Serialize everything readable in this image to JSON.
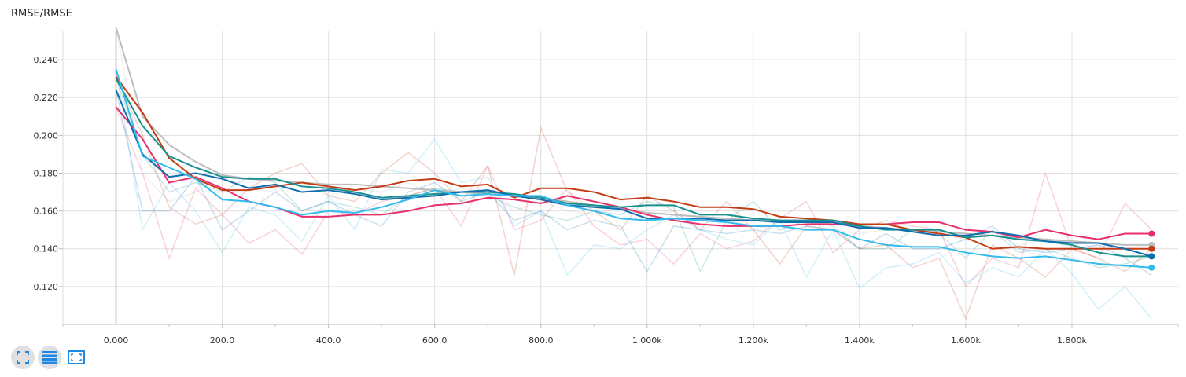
{
  "title": "RMSE/RMSE",
  "toolbar": {
    "fit_icon": "fit-domain-icon",
    "log_icon": "log-scale-icon",
    "expand_icon": "expand-icon"
  },
  "chart_data": {
    "type": "line",
    "title": "RMSE/RMSE",
    "xlabel": "",
    "ylabel": "",
    "xlim": [
      -100,
      2000
    ],
    "ylim": [
      0.1,
      0.255
    ],
    "x_ticks": [
      0,
      200,
      400,
      600,
      800,
      1000,
      1200,
      1400,
      1600,
      1800
    ],
    "x_tick_labels": [
      "0.000",
      "200.0",
      "400.0",
      "600.0",
      "800.0",
      "1.000k",
      "1.200k",
      "1.400k",
      "1.600k",
      "1.800k"
    ],
    "y_ticks": [
      0.12,
      0.14,
      0.16,
      0.18,
      0.2,
      0.22,
      0.24
    ],
    "y_tick_labels": [
      "0.120",
      "0.140",
      "0.160",
      "0.180",
      "0.200",
      "0.220",
      "0.240"
    ],
    "grid": true,
    "x": [
      0,
      50,
      100,
      150,
      200,
      250,
      300,
      350,
      400,
      450,
      500,
      550,
      600,
      650,
      700,
      750,
      800,
      850,
      900,
      950,
      1000,
      1050,
      1100,
      1150,
      1200,
      1250,
      1300,
      1350,
      1400,
      1450,
      1500,
      1550,
      1600,
      1650,
      1700,
      1750,
      1800,
      1850,
      1900,
      1950
    ],
    "series": [
      {
        "color": "#bdbdbd",
        "smoothed": [
          0.257,
          0.21,
          0.195,
          0.186,
          0.179,
          0.177,
          0.176,
          0.175,
          0.174,
          0.174,
          0.173,
          0.172,
          0.171,
          0.17,
          0.169,
          0.168,
          0.167,
          0.165,
          0.163,
          0.161,
          0.159,
          0.158,
          0.157,
          0.156,
          0.155,
          0.154,
          0.154,
          0.153,
          0.152,
          0.151,
          0.15,
          0.149,
          0.148,
          0.147,
          0.146,
          0.145,
          0.144,
          0.143,
          0.142,
          0.142
        ],
        "raw": [
          0.257,
          0.18,
          0.165,
          0.17,
          0.178,
          0.172,
          0.17,
          0.175,
          0.168,
          0.172,
          0.17,
          0.175,
          0.168,
          0.172,
          0.17,
          0.16,
          0.165,
          0.16,
          0.158,
          0.162,
          0.158,
          0.16,
          0.15,
          0.155,
          0.152,
          0.15,
          0.155,
          0.15,
          0.148,
          0.15,
          0.15,
          0.148,
          0.145,
          0.14,
          0.142,
          0.145,
          0.14,
          0.142,
          0.14,
          0.142
        ]
      },
      {
        "color": "#e8306b",
        "smoothed": [
          0.215,
          0.198,
          0.175,
          0.178,
          0.172,
          0.165,
          0.162,
          0.157,
          0.157,
          0.158,
          0.158,
          0.16,
          0.163,
          0.164,
          0.167,
          0.166,
          0.164,
          0.168,
          0.165,
          0.162,
          0.158,
          0.155,
          0.153,
          0.152,
          0.152,
          0.152,
          0.153,
          0.153,
          0.153,
          0.153,
          0.154,
          0.154,
          0.15,
          0.149,
          0.146,
          0.15,
          0.147,
          0.145,
          0.148,
          0.148
        ],
        "raw": [
          0.215,
          0.18,
          0.135,
          0.172,
          0.158,
          0.143,
          0.15,
          0.137,
          0.16,
          0.158,
          0.165,
          0.168,
          0.172,
          0.152,
          0.184,
          0.15,
          0.155,
          0.172,
          0.152,
          0.142,
          0.145,
          0.132,
          0.148,
          0.14,
          0.144,
          0.156,
          0.165,
          0.138,
          0.15,
          0.155,
          0.152,
          0.15,
          0.12,
          0.135,
          0.13,
          0.18,
          0.14,
          0.135,
          0.164,
          0.15
        ]
      },
      {
        "color": "#c43c15",
        "smoothed": [
          0.231,
          0.212,
          0.188,
          0.177,
          0.171,
          0.171,
          0.173,
          0.175,
          0.173,
          0.171,
          0.173,
          0.176,
          0.177,
          0.173,
          0.174,
          0.167,
          0.172,
          0.172,
          0.17,
          0.166,
          0.167,
          0.165,
          0.162,
          0.162,
          0.161,
          0.157,
          0.156,
          0.155,
          0.153,
          0.153,
          0.15,
          0.148,
          0.146,
          0.14,
          0.141,
          0.14,
          0.14,
          0.14,
          0.14,
          0.14
        ],
        "raw": [
          0.231,
          0.2,
          0.162,
          0.153,
          0.158,
          0.172,
          0.18,
          0.185,
          0.168,
          0.165,
          0.18,
          0.191,
          0.18,
          0.165,
          0.184,
          0.126,
          0.204,
          0.17,
          0.16,
          0.15,
          0.168,
          0.16,
          0.15,
          0.165,
          0.15,
          0.132,
          0.152,
          0.15,
          0.14,
          0.142,
          0.13,
          0.135,
          0.103,
          0.142,
          0.135,
          0.125,
          0.14,
          0.135,
          0.128,
          0.14
        ]
      },
      {
        "color": "#16918e",
        "smoothed": [
          0.23,
          0.205,
          0.189,
          0.183,
          0.178,
          0.177,
          0.177,
          0.173,
          0.172,
          0.17,
          0.167,
          0.168,
          0.169,
          0.17,
          0.17,
          0.169,
          0.167,
          0.164,
          0.163,
          0.162,
          0.163,
          0.163,
          0.158,
          0.158,
          0.156,
          0.155,
          0.155,
          0.155,
          0.152,
          0.15,
          0.15,
          0.15,
          0.146,
          0.147,
          0.145,
          0.144,
          0.142,
          0.138,
          0.136,
          0.136
        ],
        "raw": [
          0.23,
          0.19,
          0.17,
          0.175,
          0.17,
          0.178,
          0.175,
          0.16,
          0.165,
          0.162,
          0.158,
          0.168,
          0.172,
          0.17,
          0.168,
          0.162,
          0.158,
          0.155,
          0.16,
          0.158,
          0.165,
          0.162,
          0.128,
          0.155,
          0.165,
          0.15,
          0.155,
          0.152,
          0.14,
          0.14,
          0.15,
          0.148,
          0.135,
          0.15,
          0.138,
          0.14,
          0.135,
          0.13,
          0.132,
          0.136
        ]
      },
      {
        "color": "#0f6db0",
        "smoothed": [
          0.224,
          0.19,
          0.178,
          0.18,
          0.177,
          0.172,
          0.174,
          0.17,
          0.171,
          0.169,
          0.166,
          0.167,
          0.168,
          0.17,
          0.171,
          0.168,
          0.166,
          0.163,
          0.162,
          0.161,
          0.156,
          0.156,
          0.156,
          0.155,
          0.155,
          0.154,
          0.154,
          0.154,
          0.151,
          0.151,
          0.149,
          0.147,
          0.147,
          0.149,
          0.147,
          0.144,
          0.143,
          0.143,
          0.14,
          0.136
        ],
        "raw": [
          0.224,
          0.16,
          0.16,
          0.178,
          0.15,
          0.16,
          0.17,
          0.16,
          0.165,
          0.158,
          0.152,
          0.17,
          0.175,
          0.165,
          0.17,
          0.155,
          0.16,
          0.15,
          0.155,
          0.152,
          0.128,
          0.152,
          0.15,
          0.148,
          0.15,
          0.148,
          0.152,
          0.15,
          0.14,
          0.148,
          0.14,
          0.14,
          0.145,
          0.152,
          0.14,
          0.138,
          0.14,
          0.142,
          0.135,
          0.126
        ]
      },
      {
        "color": "#33bbee",
        "smoothed": [
          0.235,
          0.189,
          0.183,
          0.177,
          0.166,
          0.165,
          0.162,
          0.158,
          0.16,
          0.159,
          0.162,
          0.166,
          0.171,
          0.168,
          0.169,
          0.168,
          0.168,
          0.163,
          0.16,
          0.156,
          0.155,
          0.156,
          0.155,
          0.154,
          0.152,
          0.152,
          0.15,
          0.15,
          0.145,
          0.142,
          0.141,
          0.141,
          0.138,
          0.136,
          0.135,
          0.136,
          0.134,
          0.132,
          0.131,
          0.13
        ],
        "raw": [
          0.235,
          0.15,
          0.175,
          0.16,
          0.138,
          0.162,
          0.158,
          0.144,
          0.168,
          0.15,
          0.182,
          0.18,
          0.198,
          0.175,
          0.178,
          0.152,
          0.16,
          0.126,
          0.142,
          0.14,
          0.15,
          0.158,
          0.15,
          0.145,
          0.142,
          0.155,
          0.125,
          0.15,
          0.119,
          0.13,
          0.132,
          0.138,
          0.122,
          0.13,
          0.125,
          0.14,
          0.127,
          0.108,
          0.12,
          0.103
        ]
      }
    ]
  }
}
